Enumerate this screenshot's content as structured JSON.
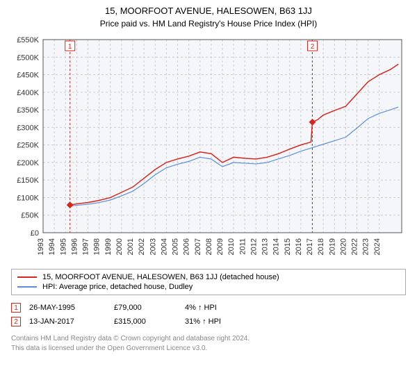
{
  "title": "15, MOORFOOT AVENUE, HALESOWEN, B63 1JJ",
  "subtitle": "Price paid vs. HM Land Registry's House Price Index (HPI)",
  "chart": {
    "type": "line",
    "plot_bg": "#f5f6fa",
    "page_bg": "#ffffff",
    "grid_color": "#cccccc",
    "grid_dash": "3 3",
    "axis_color": "#555555",
    "tick_font_size": 11,
    "y": {
      "min": 0,
      "max": 550000,
      "step": 50000,
      "labels": [
        "£0",
        "£50K",
        "£100K",
        "£150K",
        "£200K",
        "£250K",
        "£300K",
        "£350K",
        "£400K",
        "£450K",
        "£500K",
        "£550K"
      ]
    },
    "x": {
      "min": 1993,
      "max": 2025,
      "step": 1,
      "labels": [
        "1993",
        "1994",
        "1995",
        "1996",
        "1997",
        "1998",
        "1999",
        "2000",
        "2001",
        "2002",
        "2003",
        "2004",
        "2005",
        "2006",
        "2007",
        "2008",
        "2009",
        "2010",
        "2011",
        "2012",
        "2013",
        "2014",
        "2015",
        "2016",
        "2017",
        "2018",
        "2019",
        "2020",
        "2022",
        "2023",
        "2024"
      ]
    },
    "series": [
      {
        "name": "15, MOORFOOT AVENUE, HALESOWEN, B63 1JJ (detached house)",
        "color": "#d9261c",
        "width": 1.5,
        "data": [
          [
            1995.4,
            79000
          ],
          [
            1996,
            82000
          ],
          [
            1997,
            86000
          ],
          [
            1998,
            92000
          ],
          [
            1999,
            100000
          ],
          [
            2000,
            115000
          ],
          [
            2001,
            130000
          ],
          [
            2002,
            155000
          ],
          [
            2003,
            180000
          ],
          [
            2004,
            200000
          ],
          [
            2005,
            210000
          ],
          [
            2006,
            218000
          ],
          [
            2007,
            230000
          ],
          [
            2008,
            225000
          ],
          [
            2009,
            200000
          ],
          [
            2010,
            215000
          ],
          [
            2011,
            212000
          ],
          [
            2012,
            210000
          ],
          [
            2013,
            215000
          ],
          [
            2014,
            225000
          ],
          [
            2015,
            238000
          ],
          [
            2016,
            250000
          ],
          [
            2016.9,
            258000
          ],
          [
            2017.03,
            315000
          ],
          [
            2017.5,
            322000
          ],
          [
            2018,
            335000
          ],
          [
            2019,
            348000
          ],
          [
            2020,
            360000
          ],
          [
            2021,
            395000
          ],
          [
            2022,
            430000
          ],
          [
            2023,
            450000
          ],
          [
            2024,
            465000
          ],
          [
            2024.7,
            480000
          ]
        ]
      },
      {
        "name": "HPI: Average price, detached house, Dudley",
        "color": "#5a8fd6",
        "width": 1.2,
        "data": [
          [
            1995.4,
            76000
          ],
          [
            1996,
            78000
          ],
          [
            1997,
            81000
          ],
          [
            1998,
            86000
          ],
          [
            1999,
            93000
          ],
          [
            2000,
            105000
          ],
          [
            2001,
            118000
          ],
          [
            2002,
            140000
          ],
          [
            2003,
            165000
          ],
          [
            2004,
            185000
          ],
          [
            2005,
            195000
          ],
          [
            2006,
            203000
          ],
          [
            2007,
            215000
          ],
          [
            2008,
            210000
          ],
          [
            2009,
            188000
          ],
          [
            2010,
            200000
          ],
          [
            2011,
            198000
          ],
          [
            2012,
            196000
          ],
          [
            2013,
            200000
          ],
          [
            2014,
            210000
          ],
          [
            2015,
            220000
          ],
          [
            2016,
            232000
          ],
          [
            2017,
            242000
          ],
          [
            2018,
            252000
          ],
          [
            2019,
            262000
          ],
          [
            2020,
            272000
          ],
          [
            2021,
            298000
          ],
          [
            2022,
            325000
          ],
          [
            2023,
            340000
          ],
          [
            2024,
            350000
          ],
          [
            2024.7,
            358000
          ]
        ]
      }
    ],
    "markers": [
      {
        "n": "1",
        "x": 1995.4,
        "y": 79000,
        "color": "#d9261c",
        "vline_color": "#d9261c"
      },
      {
        "n": "2",
        "x": 2017.03,
        "y": 315000,
        "color": "#d9261c",
        "vline_color": "#d9261c"
      }
    ],
    "marker_box_border": "#d9261c",
    "marker_box_fill": "#ffffff"
  },
  "legend": {
    "series1_label": "15, MOORFOOT AVENUE, HALESOWEN, B63 1JJ (detached house)",
    "series2_label": "HPI: Average price, detached house, Dudley"
  },
  "sales": [
    {
      "n": "1",
      "date": "26-MAY-1995",
      "price": "£79,000",
      "pct": "4% ↑ HPI"
    },
    {
      "n": "2",
      "date": "13-JAN-2017",
      "price": "£315,000",
      "pct": "31% ↑ HPI"
    }
  ],
  "footnote_line1": "Contains HM Land Registry data © Crown copyright and database right 2024.",
  "footnote_line2": "This data is licensed under the Open Government Licence v3.0."
}
